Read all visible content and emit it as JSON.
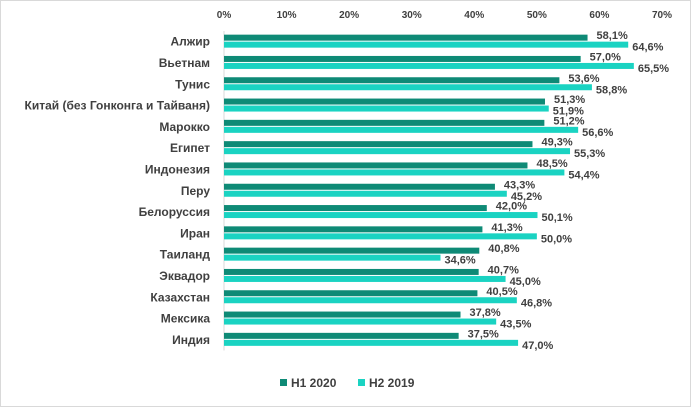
{
  "chart_data": {
    "type": "bar",
    "orientation": "horizontal",
    "categories": [
      "Алжир",
      "Вьетнам",
      "Тунис",
      "Китай (без Гонконга и Тайваня)",
      "Марокко",
      "Египет",
      "Индонезия",
      "Перу",
      "Белоруссия",
      "Иран",
      "Таиланд",
      "Эквадор",
      "Казахстан",
      "Мексика",
      "Индия"
    ],
    "series": [
      {
        "name": "H1 2020",
        "color": "#0e8a76",
        "values": [
          58.1,
          57.0,
          53.6,
          51.3,
          51.2,
          49.3,
          48.5,
          43.3,
          42.0,
          41.3,
          40.8,
          40.7,
          40.5,
          37.8,
          37.5
        ],
        "labels": [
          "58,1%",
          "57,0%",
          "53,6%",
          "51,3%",
          "51,2%",
          "49,3%",
          "48,5%",
          "43,3%",
          "42,0%",
          "41,3%",
          "40,8%",
          "40,7%",
          "40,5%",
          "37,8%",
          "37,5%"
        ]
      },
      {
        "name": "H2 2019",
        "color": "#1ad3c2",
        "values": [
          64.6,
          65.5,
          58.8,
          51.9,
          56.6,
          55.3,
          54.4,
          45.2,
          50.1,
          50.0,
          34.6,
          45.0,
          46.8,
          43.5,
          47.0
        ],
        "labels": [
          "64,6%",
          "65,5%",
          "58,8%",
          "51,9%",
          "56,6%",
          "55,3%",
          "54,4%",
          "45,2%",
          "50,1%",
          "50,0%",
          "34,6%",
          "45,0%",
          "46,8%",
          "43,5%",
          "47,0%"
        ]
      }
    ],
    "xlim": [
      0,
      70
    ],
    "xticks": [
      "0%",
      "10%",
      "20%",
      "30%",
      "40%",
      "50%",
      "60%",
      "70%"
    ],
    "axis_position": "top",
    "grid": false,
    "legend_position": "bottom",
    "title": "",
    "xlabel": "",
    "ylabel": ""
  }
}
